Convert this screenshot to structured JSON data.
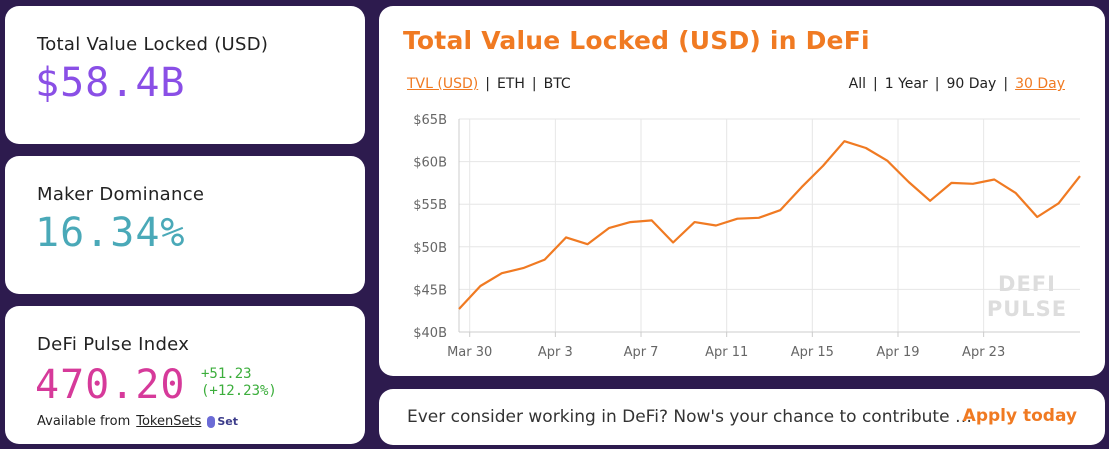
{
  "stats": {
    "tvl": {
      "label": "Total Value Locked (USD)",
      "value": "$58.4B"
    },
    "maker": {
      "label": "Maker Dominance",
      "value": "16.34%"
    },
    "index": {
      "label": "DeFi Pulse Index",
      "value": "470.20",
      "change": "+51.23",
      "change_pct": "(+12.23%)",
      "available_text": "Available from",
      "available_link": "TokenSets",
      "logo_text": "Set"
    }
  },
  "chart_card": {
    "title": "Total Value Locked (USD) in DeFi",
    "unit_options": [
      "TVL (USD)",
      "ETH",
      "BTC"
    ],
    "unit_selected": "TVL (USD)",
    "range_options": [
      "All",
      "1 Year",
      "90 Day",
      "30 Day"
    ],
    "range_selected": "30 Day",
    "watermark": [
      "DEFI",
      "PULSE"
    ]
  },
  "chart_data": {
    "type": "line",
    "title": "Total Value Locked (USD) in DeFi",
    "xlabel": "",
    "ylabel": "",
    "ylim": [
      40,
      65
    ],
    "y_ticks": [
      "$40B",
      "$45B",
      "$50B",
      "$55B",
      "$60B",
      "$65B"
    ],
    "y_tick_values": [
      40,
      45,
      50,
      55,
      60,
      65
    ],
    "x_ticks": [
      "Mar 30",
      "Apr 3",
      "Apr 7",
      "Apr 11",
      "Apr 15",
      "Apr 19",
      "Apr 23"
    ],
    "x_tick_values": [
      1,
      5,
      9,
      13,
      17,
      21,
      25
    ],
    "xlim": [
      0.5,
      29.5
    ],
    "grid": true,
    "color": "#f07a22",
    "series": [
      {
        "x": [
          0.5,
          1.5,
          2.5,
          3.5,
          4.5,
          5.5,
          6.5,
          7.5,
          8.5,
          9.5,
          10.5,
          11.5,
          12.5,
          13.5,
          14.5,
          15.5,
          16.5,
          17.5,
          18.5,
          19.5,
          20.5,
          21.5,
          22.5,
          23.5,
          24.5,
          25.5,
          26.5,
          27.5,
          28.5,
          29.5
        ],
        "y": [
          42.7,
          45.4,
          46.9,
          47.5,
          48.5,
          51.1,
          50.3,
          52.2,
          52.9,
          53.1,
          50.5,
          52.9,
          52.5,
          53.3,
          53.4,
          54.3,
          57.0,
          59.5,
          62.4,
          61.6,
          60.1,
          57.6,
          55.4,
          57.5,
          57.4,
          57.9,
          56.3,
          53.5,
          55.1,
          58.3
        ]
      }
    ]
  },
  "banner": {
    "text": "Ever consider working in DeFi? Now's your chance to contribute …",
    "link": "Apply today"
  }
}
